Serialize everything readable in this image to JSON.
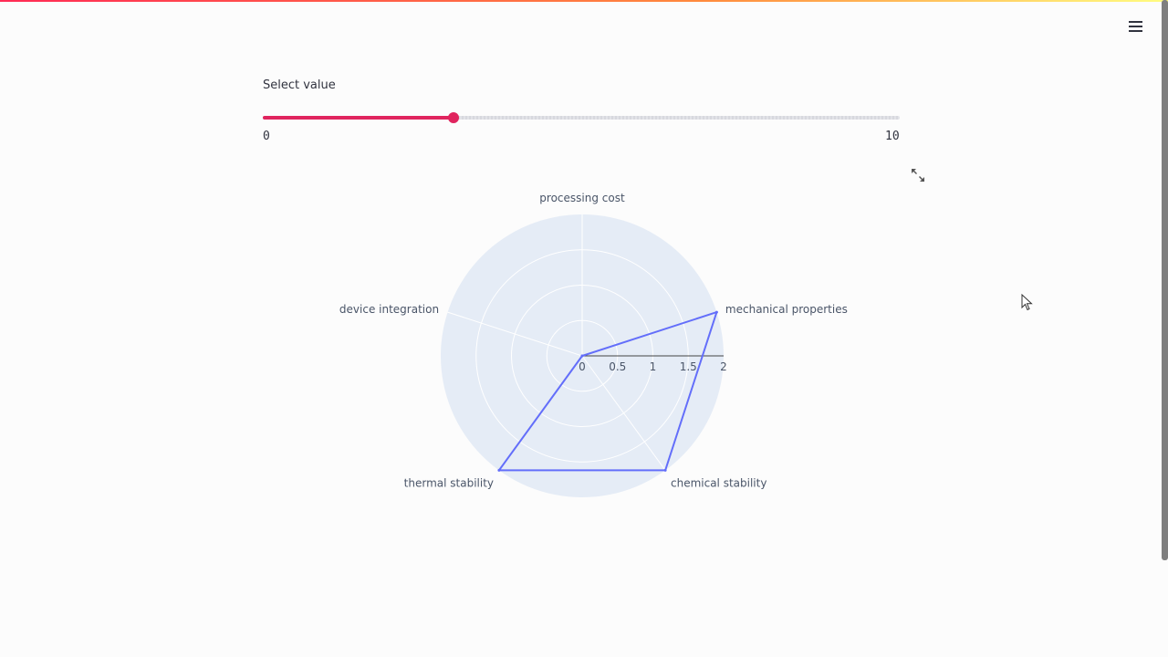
{
  "header": {
    "menu_icon": "hamburger-menu-icon"
  },
  "slider": {
    "label": "Select value",
    "min": 0,
    "max": 10,
    "value": 3,
    "min_label": "0",
    "max_label": "10",
    "accent_color": "#e0245e"
  },
  "toolbar": {
    "expand_icon": "fullscreen-expand-icon"
  },
  "chart_data": {
    "type": "radar",
    "title": "",
    "categories": [
      "processing cost",
      "mechanical properties",
      "chemical stability",
      "thermal stability",
      "device integration"
    ],
    "values": [
      0,
      2,
      2,
      2,
      0
    ],
    "radial_range": [
      0,
      2
    ],
    "radial_ticks": [
      "0",
      "0.5",
      "1",
      "1.5",
      "2"
    ],
    "line_color": "#636efa",
    "background_color": "#e5ecf6",
    "grid": true
  }
}
